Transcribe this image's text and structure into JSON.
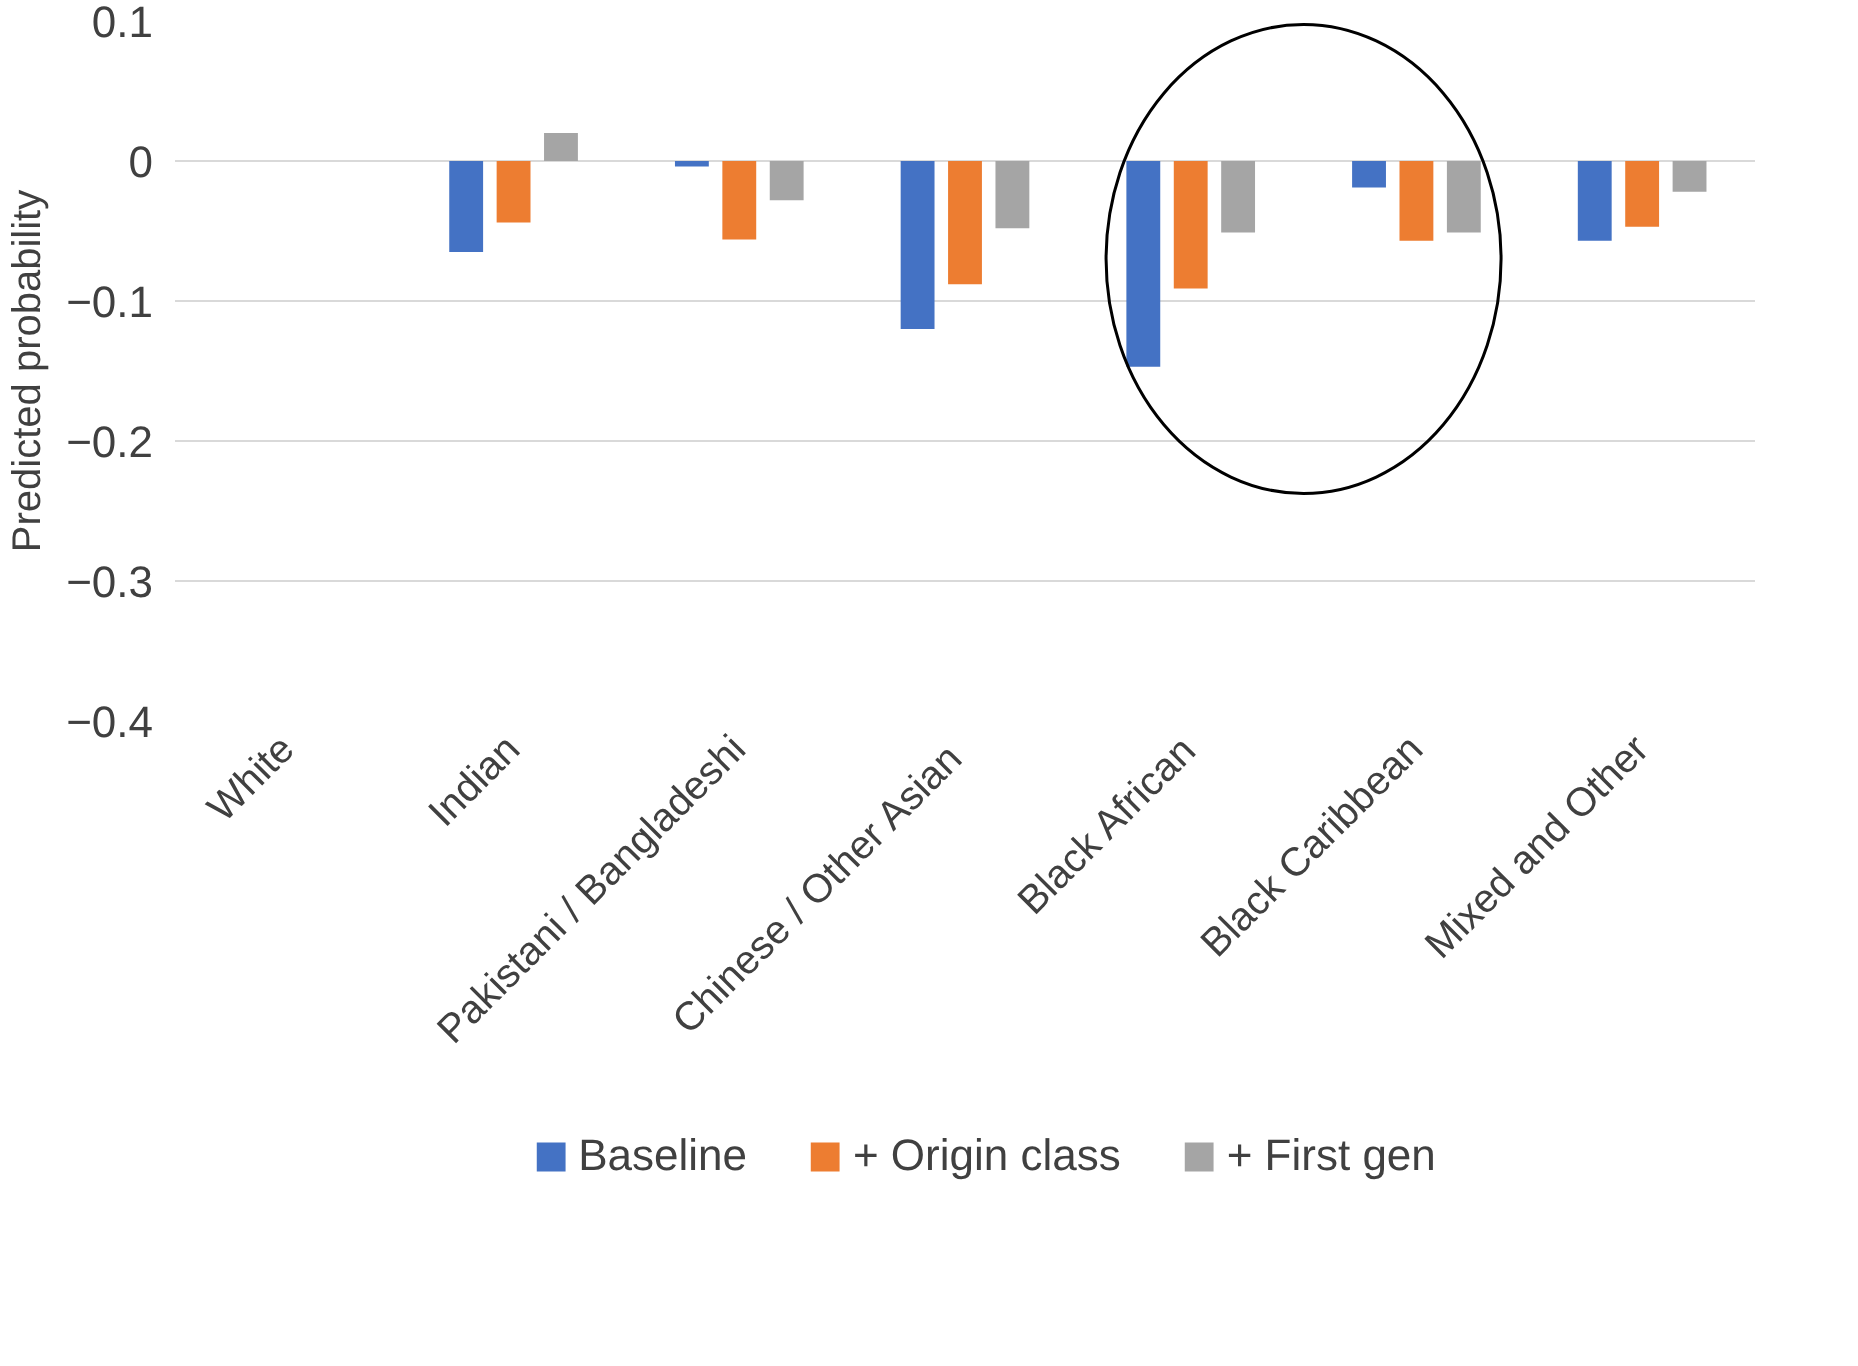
{
  "chart_data": {
    "type": "bar",
    "ylabel": "Predicted probability",
    "categories": [
      "White",
      "Indian",
      "Pakistani / Bangladeshi",
      "Chinese  / Other Asian",
      "Black African",
      "Black Caribbean",
      "Mixed and Other"
    ],
    "series": [
      {
        "name": "Baseline",
        "color": "#4472c4",
        "values": [
          0,
          -0.065,
          -0.004,
          -0.12,
          -0.147,
          -0.019,
          -0.057
        ]
      },
      {
        "name": "+ Origin class",
        "color": "#ed7d31",
        "values": [
          0,
          -0.044,
          -0.056,
          -0.088,
          -0.091,
          -0.057,
          -0.047
        ]
      },
      {
        "name": "+ First gen",
        "color": "#a5a5a5",
        "values": [
          0,
          0.02,
          -0.028,
          -0.048,
          -0.051,
          -0.051,
          -0.022
        ]
      }
    ],
    "ylim": [
      -0.4,
      0.1
    ],
    "yticks": [
      -0.4,
      -0.3,
      -0.2,
      -0.1,
      {
        "value": 0,
        "label": "0"
      },
      0.1
    ],
    "grid": "y",
    "legend": "bottom"
  }
}
